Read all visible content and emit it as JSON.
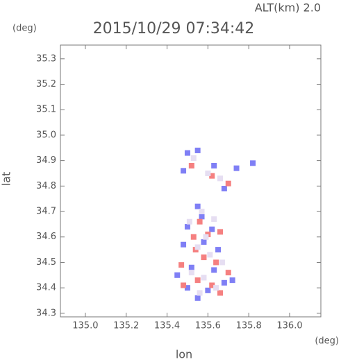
{
  "chart_data": {
    "type": "scatter",
    "title": "2015/10/29 07:34:42",
    "annotation": "ALT(km) 2.0",
    "x_label": "lon",
    "x_unit": "(deg)",
    "y_label": "lat",
    "y_unit": "(deg)",
    "xlim": [
      134.878,
      136.153
    ],
    "xticks": [
      {
        "value": 135.0,
        "label": "135.0"
      },
      135.2,
      135.4,
      135.6,
      135.8,
      {
        "value": 136.0,
        "label": "136.0"
      }
    ],
    "ylim": [
      34.286,
      35.354
    ],
    "yticks": [
      34.3,
      34.4,
      34.5,
      34.6,
      34.7,
      34.8,
      34.9,
      {
        "value": 35.0,
        "label": "35.0"
      },
      35.1,
      35.2,
      35.3
    ],
    "series": [
      {
        "color": "#7f7ff5",
        "x": [
          135.5,
          135.55,
          135.48,
          135.63,
          135.74,
          135.82,
          135.68,
          135.55,
          135.5,
          135.62,
          135.58,
          135.45,
          135.52,
          135.63,
          135.68,
          135.5,
          135.55,
          135.6,
          135.72,
          135.57,
          135.65,
          135.48
        ],
        "y": [
          34.93,
          34.94,
          34.86,
          34.88,
          34.87,
          34.89,
          34.79,
          34.72,
          34.64,
          34.63,
          34.58,
          34.45,
          34.48,
          34.47,
          34.42,
          34.4,
          34.36,
          34.39,
          34.43,
          34.68,
          34.55,
          34.57
        ]
      },
      {
        "color": "#f58080",
        "x": [
          135.52,
          135.62,
          135.7,
          135.56,
          135.6,
          135.53,
          135.66,
          135.58,
          135.64,
          135.47,
          135.55,
          135.62,
          135.66,
          135.48,
          135.7,
          135.54
        ],
        "y": [
          34.88,
          34.84,
          34.81,
          34.66,
          34.61,
          34.6,
          34.62,
          34.52,
          34.5,
          34.49,
          34.43,
          34.41,
          34.38,
          34.41,
          34.46,
          34.55
        ]
      },
      {
        "color": "#e6def2",
        "x": [
          135.53,
          135.6,
          135.66,
          135.57,
          135.51,
          135.63,
          135.59,
          135.55,
          135.61,
          135.67,
          135.52,
          135.58,
          135.64,
          135.56
        ],
        "y": [
          34.91,
          34.85,
          34.83,
          34.7,
          34.66,
          34.67,
          34.6,
          34.56,
          34.53,
          34.5,
          34.46,
          34.44,
          34.4,
          34.38
        ]
      }
    ]
  }
}
